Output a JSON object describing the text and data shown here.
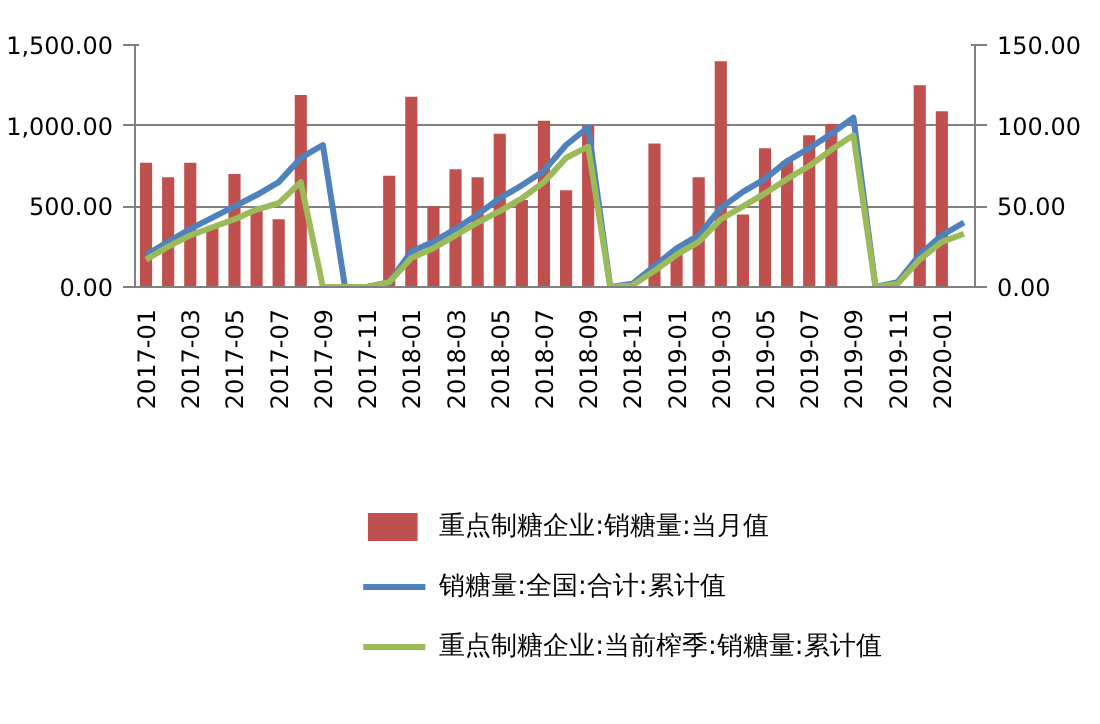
{
  "chart_data": {
    "type": "bar",
    "categories": [
      "2017-01",
      null,
      "2017-03",
      null,
      "2017-05",
      null,
      "2017-07",
      null,
      "2017-09",
      null,
      "2017-11",
      null,
      "2018-01",
      null,
      "2018-03",
      null,
      "2018-05",
      null,
      "2018-07",
      null,
      "2018-09",
      null,
      "2018-11",
      null,
      "2019-01",
      null,
      "2019-03",
      null,
      "2019-05",
      null,
      "2019-07",
      null,
      "2019-09",
      null,
      "2019-11",
      null,
      "2020-01",
      null
    ],
    "series": [
      {
        "name": "重点制糖企业:销糖量:当月值",
        "color": "#c0504d",
        "values": [
          770,
          680,
          770,
          370,
          700,
          480,
          420,
          1190,
          0,
          0,
          0,
          690,
          1180,
          500,
          730,
          680,
          950,
          540,
          1030,
          600,
          1000,
          0,
          0,
          890,
          200,
          680,
          1400,
          450,
          860,
          780,
          940,
          1010,
          0,
          0,
          0,
          1250,
          1090,
          null
        ]
      },
      {
        "name": "销糖量:全国:合计:累计值",
        "type": "line",
        "axis": "y2",
        "color": "#4f81bd",
        "values": [
          20,
          28,
          36,
          43,
          50,
          57,
          65,
          80,
          88,
          0,
          0,
          3,
          22,
          28,
          36,
          45,
          55,
          63,
          72,
          88,
          99,
          0,
          2,
          13,
          24,
          32,
          49,
          59,
          67,
          78,
          86,
          95,
          105,
          0,
          3,
          20,
          32,
          40
        ]
      },
      {
        "name": "重点制糖企业:当前榨季:销糖量:累计值",
        "type": "line",
        "axis": "y2",
        "color": "#9bbb59",
        "values": [
          17,
          25,
          32,
          37,
          42,
          48,
          52,
          65,
          0,
          0,
          0,
          3,
          18,
          24,
          32,
          40,
          47,
          55,
          65,
          80,
          87,
          0,
          1,
          10,
          20,
          28,
          42,
          50,
          58,
          67,
          75,
          85,
          94,
          0,
          2,
          17,
          28,
          33
        ]
      }
    ],
    "ylim": [
      0,
      1500
    ],
    "yticks": [
      {
        "value": 0,
        "label": "0.00"
      },
      {
        "value": 500,
        "label": "500.00"
      },
      {
        "value": 1000,
        "label": "1,000.00"
      },
      {
        "value": 1500,
        "label": "1,500.00"
      }
    ],
    "y2lim": [
      0,
      150
    ],
    "y2ticks": [
      {
        "value": 0,
        "label": "0.00"
      },
      {
        "value": 50,
        "label": "50.00"
      },
      {
        "value": 100,
        "label": "100.00"
      },
      {
        "value": 150,
        "label": "150.00"
      }
    ],
    "grid": "y",
    "legend": "bottom",
    "line_style": "solid",
    "marker": "none"
  }
}
